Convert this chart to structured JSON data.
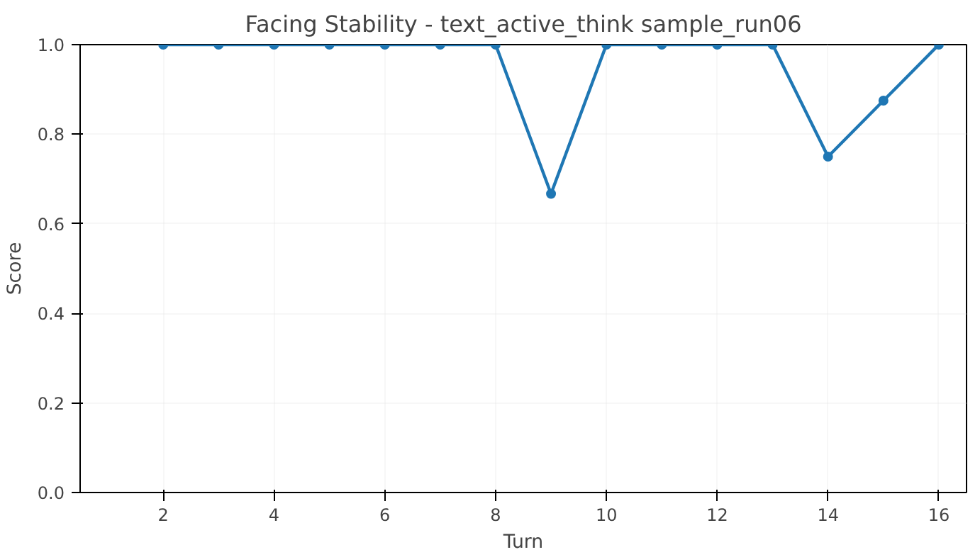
{
  "chart_data": {
    "type": "line",
    "title": "Facing Stability - text_active_think sample_run06",
    "xlabel": "Turn",
    "ylabel": "Score",
    "x": [
      2,
      3,
      4,
      5,
      6,
      7,
      8,
      9,
      10,
      11,
      12,
      13,
      14,
      15,
      16
    ],
    "series": [
      {
        "color": "#1f77b4",
        "values": [
          1,
          1,
          1,
          1,
          1,
          1,
          1,
          0.667,
          1,
          1,
          1,
          1,
          0.75,
          0.875,
          1
        ]
      }
    ],
    "xlim": [
      0.5,
      16.5
    ],
    "ylim": [
      0,
      1
    ],
    "xticks": [
      2,
      4,
      6,
      8,
      10,
      12,
      14,
      16
    ],
    "yticks": [
      {
        "value": 0,
        "label": "0.0"
      },
      {
        "value": 0.2,
        "label": "0.2"
      },
      {
        "value": 0.4,
        "label": "0.4"
      },
      {
        "value": 0.6,
        "label": "0.6"
      },
      {
        "value": 0.8,
        "label": "0.8"
      },
      {
        "value": 1,
        "label": "1.0"
      }
    ],
    "grid": true,
    "marker": "circle",
    "line_style": "solid"
  }
}
